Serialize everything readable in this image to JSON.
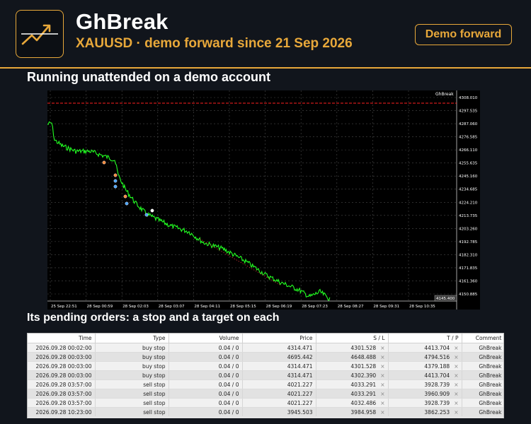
{
  "header": {
    "title": "GhBreak",
    "subtitle": "XAUUSD · demo forward since 21 Sep 2026",
    "badge": "Demo forward"
  },
  "section_chart": "Running unattended on a demo account",
  "section_orders": "Its pending orders: a stop and a target on each",
  "chart": {
    "symbol_label": "GhBreak",
    "price_ticks": [
      "4308.010",
      "4297.535",
      "4287.060",
      "4276.585",
      "4266.110",
      "4255.635",
      "4245.160",
      "4234.685",
      "4224.210",
      "4213.735",
      "4203.260",
      "4192.785",
      "4182.310",
      "4171.835",
      "4161.360",
      "4150.885"
    ],
    "current_price": "4145.400",
    "time_ticks": [
      "25 Sep 22:51",
      "28 Sep 00:59",
      "28 Sep 02:03",
      "28 Sep 03:07",
      "28 Sep 04:11",
      "28 Sep 05:15",
      "28 Sep 06:19",
      "28 Sep 07:23",
      "28 Sep 08:27",
      "28 Sep 09:31",
      "28 Sep 10:35"
    ],
    "colors": {
      "price_line": "#22ff22",
      "stop_line": "#ff2020",
      "grid": "#4a4a4a",
      "background": "#000000"
    }
  },
  "orders": {
    "columns": [
      "Time",
      "Type",
      "Volume",
      "Price",
      "S / L",
      "T / P",
      "Comment"
    ],
    "close_icon": "×",
    "rows": [
      {
        "time": "2026.09.28 00:02:00",
        "type": "buy stop",
        "volume": "0.04 / 0",
        "price": "4314.471",
        "sl": "4301.528",
        "tp": "4413.704",
        "comment": "GhBreak"
      },
      {
        "time": "2026.09.28 00:03:00",
        "type": "buy stop",
        "volume": "0.04 / 0",
        "price": "4695.442",
        "sl": "4648.488",
        "tp": "4794.516",
        "comment": "GhBreak"
      },
      {
        "time": "2026.09.28 00:03:00",
        "type": "buy stop",
        "volume": "0.04 / 0",
        "price": "4314.471",
        "sl": "4301.528",
        "tp": "4379.188",
        "comment": "GhBreak"
      },
      {
        "time": "2026.09.28 00:03:00",
        "type": "buy stop",
        "volume": "0.04 / 0",
        "price": "4314.471",
        "sl": "4302.390",
        "tp": "4413.704",
        "comment": "GhBreak"
      },
      {
        "time": "2026.09.28 03:57:00",
        "type": "sell stop",
        "volume": "0.04 / 0",
        "price": "4021.227",
        "sl": "4033.291",
        "tp": "3928.739",
        "comment": "GhBreak"
      },
      {
        "time": "2026.09.28 03:57:00",
        "type": "sell stop",
        "volume": "0.04 / 0",
        "price": "4021.227",
        "sl": "4033.291",
        "tp": "3960.909",
        "comment": "GhBreak"
      },
      {
        "time": "2026.09.28 03:57:00",
        "type": "sell stop",
        "volume": "0.04 / 0",
        "price": "4021.227",
        "sl": "4032.486",
        "tp": "3928.739",
        "comment": "GhBreak"
      },
      {
        "time": "2026.09.28 10:23:00",
        "type": "sell stop",
        "volume": "0.04 / 0",
        "price": "3945.503",
        "sl": "3984.958",
        "tp": "3862.253",
        "comment": "GhBreak"
      }
    ]
  }
}
